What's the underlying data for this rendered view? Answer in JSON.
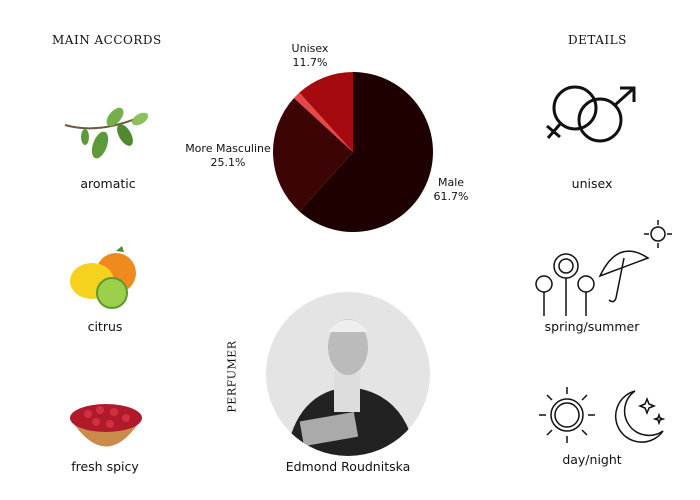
{
  "headings": {
    "main_accords": "MAIN ACCORDS",
    "details": "DETAILS",
    "perfumer": "PERFUMER"
  },
  "accords": [
    {
      "label": "aromatic",
      "icon": "herb-sprig-icon"
    },
    {
      "label": "citrus",
      "icon": "citrus-fruit-icon"
    },
    {
      "label": "fresh spicy",
      "icon": "peppercorn-bowl-icon"
    }
  ],
  "details": [
    {
      "label": "unisex",
      "icon": "gender-symbols-icon"
    },
    {
      "label": "spring/summer",
      "icon": "flowers-umbrella-sun-icon"
    },
    {
      "label": "day/night",
      "icon": "sun-moon-icon"
    }
  ],
  "perfumer": {
    "name": "Edmond Roudnitska"
  },
  "chart_data": {
    "type": "pie",
    "slices": [
      {
        "name": "Male",
        "value": 61.7,
        "label": "61.7%",
        "color": "#1e0000"
      },
      {
        "name": "More Masculine",
        "value": 25.1,
        "label": "25.1%",
        "color": "#3d0405"
      },
      {
        "name": "",
        "value": 1.5,
        "label": "",
        "color": "#e8474a"
      },
      {
        "name": "Unisex",
        "value": 11.7,
        "label": "11.7%",
        "color": "#a50b0e"
      }
    ],
    "start": "top",
    "direction": "clockwise"
  }
}
